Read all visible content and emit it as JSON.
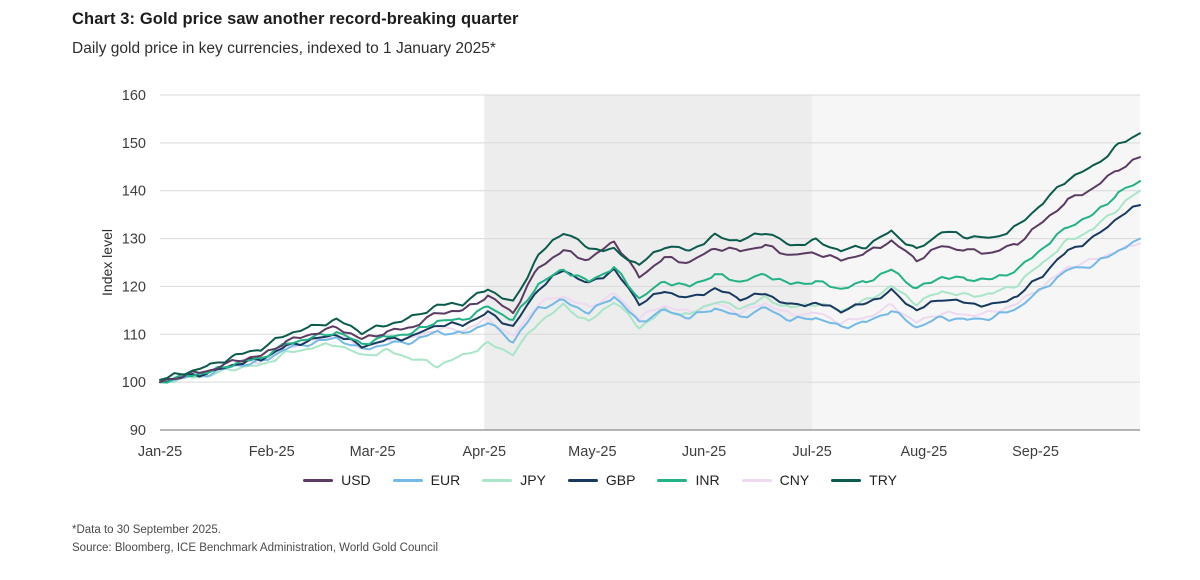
{
  "header": {
    "title": "Chart 3: Gold price saw another record-breaking quarter",
    "subtitle": "Daily gold price in key currencies, indexed to 1 January 2025*"
  },
  "footer": {
    "footnote": "*Data to 30 September 2025.",
    "source": "Source: Bloomberg, ICE Benchmark Administration, World Gold Council"
  },
  "chart_data": {
    "type": "line",
    "title": "Chart 3: Gold price saw another record-breaking quarter",
    "subtitle": "Daily gold price in key currencies, indexed to 1 January 2025*",
    "ylabel": "Index level",
    "xlabel": "",
    "ylim": [
      90,
      160
    ],
    "yticks": [
      90,
      100,
      110,
      120,
      130,
      140,
      150,
      160
    ],
    "grid": "horizontal",
    "legend_position": "bottom",
    "xticks": [
      "2025-01-01",
      "2025-02-01",
      "2025-03-01",
      "2025-04-01",
      "2025-05-01",
      "2025-06-01",
      "2025-07-01",
      "2025-08-01",
      "2025-09-01"
    ],
    "xtick_labels": [
      "Jan-25",
      "Feb-25",
      "Mar-25",
      "Apr-25",
      "May-25",
      "Jun-25",
      "Jul-25",
      "Aug-25",
      "Sep-25"
    ],
    "background_bands": [
      {
        "from": "2025-04-01",
        "to": "2025-07-01",
        "color": "#ededee"
      },
      {
        "from": "2025-07-01",
        "to": "2025-09-30",
        "color": "#f6f6f7"
      }
    ],
    "axis_color": "#8a8a8a",
    "grid_color": "#d9d9d9",
    "x": [
      "2025-01-01",
      "2025-01-08",
      "2025-01-15",
      "2025-01-22",
      "2025-01-29",
      "2025-02-05",
      "2025-02-12",
      "2025-02-19",
      "2025-02-26",
      "2025-03-05",
      "2025-03-12",
      "2025-03-19",
      "2025-03-26",
      "2025-04-02",
      "2025-04-09",
      "2025-04-16",
      "2025-04-23",
      "2025-04-30",
      "2025-05-07",
      "2025-05-14",
      "2025-05-21",
      "2025-05-28",
      "2025-06-04",
      "2025-06-11",
      "2025-06-18",
      "2025-06-25",
      "2025-07-02",
      "2025-07-09",
      "2025-07-16",
      "2025-07-23",
      "2025-07-30",
      "2025-08-06",
      "2025-08-13",
      "2025-08-20",
      "2025-08-27",
      "2025-09-03",
      "2025-09-10",
      "2025-09-17",
      "2025-09-24",
      "2025-09-30"
    ],
    "series": [
      {
        "name": "USD",
        "color": "#5c3b63",
        "values": [
          100,
          101.5,
          102.5,
          104.5,
          105.5,
          108.5,
          110,
          111.5,
          109,
          110.5,
          111.5,
          114.5,
          115,
          118,
          114.5,
          124,
          127.5,
          125.5,
          129.5,
          122,
          126,
          125,
          128,
          127.5,
          128.5,
          126.5,
          127,
          125.5,
          127,
          129.5,
          125.5,
          128.5,
          127.5,
          127,
          129,
          133.5,
          138,
          140.5,
          144.5,
          147
        ]
      },
      {
        "name": "EUR",
        "color": "#74b9e7",
        "values": [
          100,
          101,
          101.8,
          103.5,
          104.2,
          107,
          108.2,
          109.2,
          106.8,
          108,
          108.5,
          110.5,
          110,
          112.5,
          108.5,
          115.5,
          117,
          114.5,
          118,
          112.5,
          115,
          113.5,
          115.5,
          113.5,
          115.5,
          113,
          113.5,
          111.5,
          112.5,
          115,
          111.5,
          113.5,
          113,
          113.5,
          115.5,
          119.5,
          123.5,
          124.5,
          127.5,
          130
        ]
      },
      {
        "name": "JPY",
        "color": "#a9e6c8",
        "values": [
          100,
          100.8,
          101.5,
          103,
          103.5,
          106,
          107.2,
          108,
          105.5,
          106.5,
          105,
          103.5,
          105.5,
          108,
          106,
          112.5,
          116,
          112.5,
          117,
          111.5,
          115,
          114,
          117,
          115.5,
          117.5,
          115.5,
          116.5,
          115,
          117,
          120,
          116.5,
          119,
          118,
          118.5,
          120.5,
          125,
          129.5,
          132,
          136.5,
          140
        ]
      },
      {
        "name": "GBP",
        "color": "#17395f",
        "values": [
          100,
          101.2,
          102,
          103.8,
          104.8,
          107.5,
          108.8,
          110,
          107.5,
          108.8,
          109.5,
          112,
          112,
          114.5,
          111.5,
          119.5,
          123.5,
          120.5,
          123.5,
          116.5,
          119,
          117.5,
          119.5,
          117.5,
          118.5,
          116,
          116.5,
          115,
          116.5,
          119,
          115,
          117.5,
          116.5,
          116,
          118,
          122.5,
          127.5,
          130,
          134.5,
          137
        ]
      },
      {
        "name": "INR",
        "color": "#22b286",
        "values": [
          100,
          101.3,
          102.2,
          104,
          105,
          108,
          109.3,
          110.5,
          108,
          109.5,
          110.3,
          112.8,
          113,
          115.8,
          113,
          120.5,
          123.5,
          121,
          124,
          117.5,
          121,
          120,
          122.5,
          121,
          122.5,
          120.5,
          121,
          119.5,
          121,
          123.5,
          119.5,
          122,
          121.5,
          121.5,
          123.5,
          128,
          132.5,
          135,
          139.5,
          142
        ]
      },
      {
        "name": "CNY",
        "color": "#eed9f0",
        "values": [
          100,
          101.2,
          102,
          103.8,
          104.5,
          107.3,
          108.6,
          109.8,
          107.3,
          108.6,
          109.2,
          111.2,
          110.8,
          113.2,
          109.5,
          116.5,
          118,
          115.5,
          118.5,
          113.5,
          116,
          114.5,
          116.5,
          114.5,
          116.5,
          114,
          114.5,
          112.5,
          113.5,
          116,
          112.5,
          114.5,
          114,
          114.5,
          116.5,
          120,
          124,
          125.5,
          127.5,
          129
        ]
      },
      {
        "name": "TRY",
        "color": "#0b5b4c",
        "values": [
          100.5,
          102,
          103.5,
          105.5,
          107,
          110,
          111.5,
          113,
          110.5,
          112,
          113.5,
          116,
          116.5,
          119.5,
          116.5,
          126.5,
          131.5,
          128,
          127.5,
          124.5,
          128.5,
          127.5,
          130.5,
          129.5,
          131.5,
          128.5,
          129.5,
          127.5,
          128.5,
          131.5,
          127.5,
          131.5,
          130.5,
          130,
          132.5,
          137.5,
          142.5,
          145,
          149.5,
          152
        ]
      }
    ]
  }
}
